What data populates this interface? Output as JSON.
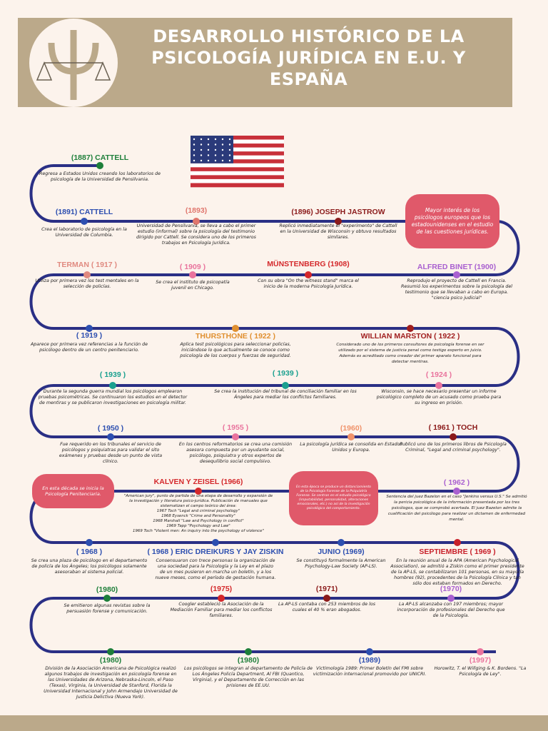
{
  "header": {
    "title": "DESARROLLO HISTÓRICO DE LA PSICOLOGÍA JURÍDICA EN E.U. Y ESPAÑA"
  },
  "events": [
    {
      "label": "(1887) CATTELL",
      "text": "Regresa a Estados Unidos creando los laboratorios de psicología de la Universidad de Pensilvania."
    },
    {
      "label": "(1891) CATTELL",
      "text": "Crea el laboratorio de psicología en la Universidad de Columbia."
    },
    {
      "label": "(1893)",
      "text": "Universidad de Pensilvania, se lleva a cabo el primer estudio (informal) sobre la psicología del testimonio dirigido por Cattell. Se considera uno de los primeros trabajos en Psicología Jurídica."
    },
    {
      "label": "(1896) JOSEPH JASTROW",
      "text": "Replicó inmediatamente el \"experimento\" de Cattell en la Universidad de Wisconsin y obtuvo resultados similares."
    },
    {
      "label": "TERMAN ( 1917 )",
      "text": "Utiliza por primera vez los test mentales en la selección de policías."
    },
    {
      "label": "( 1909 )",
      "text": "Se crea el instituto de psicopatía juvenil en Chicago."
    },
    {
      "label": "MÜNSTENBERG (1908)",
      "text": "Con su obra \"On the witness stand\" marca el inicio de la moderna Psicología Jurídica."
    },
    {
      "label": "ALFRED BINET (1900)",
      "text": "Reprodujo el proyecto de Cattell en Francia. Resumió los experimentos sobre la psicología del testimonio que se llevaban a cabo en Europa. \"ciencia psico judicial\""
    },
    {
      "label": "( 1919 )",
      "text": "Aparece por primera vez referencias a la función de psicólogo dentro de un centro penitenciario."
    },
    {
      "label": "THURSTHONE ( 1922 )",
      "text": "Aplica test psicológicos para seleccionar policías, iniciándose lo que actualmente se conoce como psicología de los cuerpos y fuerzas de seguridad."
    },
    {
      "label": "WILLIAN MARSTON ( 1922 )",
      "text": "Considerado uno de los primeros consultores de psicología forense en ser utilizado por el sistema de justicia penal como testigo experto en juicio. Además es acreditado como creador del primer aparato funcional para detectar mentiras."
    },
    {
      "label": "( 1939 )",
      "text": "Durante la segunda guerra mundial los psicólogos emplearon pruebas psicométricas. Se continuaron los estudios en el detector de mentiras y se publicaron investigaciones en psicología militar."
    },
    {
      "label": "( 1939 )",
      "text": "Se crea la institución del tribunal de conciliación familiar en los Ángeles para mediar los conflictos familiares."
    },
    {
      "label": "( 1924 )",
      "text": "Wisconsin, se hace necesario presentar un informe psicológico completo de un acusado como prueba para su ingreso en prisión."
    },
    {
      "label": "( 1950 )",
      "text": "Fue requerido en los tribunales el servicio de psicólogos y psiquiatras para validar el sito exámenes y pruebas desde un punto de vista clínico."
    },
    {
      "label": "( 1955 )",
      "text": "En los centros reformatorios se crea una comisión asesora compuesta por un ayudante social, psicólogo, psiquiatra y otros expertos de desequilibrio social compulsivo."
    },
    {
      "label": "(1960)",
      "text": "La psicología jurídica se consolida en Estados Unidos y Europa."
    },
    {
      "label": "( 1961 ) TOCH",
      "text": "Publicó uno de los primeros libros de Psicología Criminal, \"Legal and criminal psychology\"."
    },
    {
      "label": "KALVEN Y ZEISEL (1966)",
      "text": "\"American jury\", punto de partida de una etapa de desarrollo y expansión de la investigación y literatura psico-jurídica. Publicación de manuales que sistematizan el campo teórico del área:",
      "works": [
        "1967 Toch \"Legal and criminal psychology\"",
        "1968 Eysenck \"Crime and Personality\"",
        "1968 Marshall \"Law and Psychology in conflict\"",
        "1969 Tapp \"Psychology and Law\"",
        "1969 Toch \"Violent men: An inquiry into the psychology of violence\""
      ]
    },
    {
      "label": "( 1962 )",
      "text": "Sentencia del juez Bazelon en el caso \"Jenkins versus U.S.\" Se admitió la pericia psicológica de la información presentada por los tres psicólogos, que se comprobó acertada. El juez Bazelon admite la cualificación del psicólogo para realizar un dictamen de enfermedad mental."
    },
    {
      "label": "( 1968 )",
      "text": "Se crea una plaza de psicólogo en el departamento de policía de los Ángeles; los psicólogos solamente asesoraban al sistema policial."
    },
    {
      "label": "( 1968 ) ERIC DREIKURS Y JAY ZISKIN",
      "text": "Consensuaron con trece personas la organización de una sociedad para la Psicología y la Ley en el plazo de un mes pusieron en marcha un boletín, y a los nueve meses, como el período de gestación humana."
    },
    {
      "label": "JUNIO (1969)",
      "text": "Se constituyó formalmente la American Psychology-Law Society (AP-LS)."
    },
    {
      "label": "SEPTIEMBRE ( 1969 )",
      "text": "En la reunión anual de la APA (American Psychological Association), se admitió a Ziskin como el primer presidente de la AP-LS, se contabilizaron 101 personas, en su mayoría hombres (92), procedentes de la Psicología Clínica y tan sólo dos estaban formados en Derecho."
    },
    {
      "label": "(1980)",
      "text": "Se emitieron algunas revistas sobre la persuasión forense y comunicación."
    },
    {
      "label": "(1975)",
      "text": "Coogler estableció la Asociación de la Mediación Familiar para mediar los conflictos familiares."
    },
    {
      "label": "(1971)",
      "text": "La AP-LS contaba con 253 miembros de los cuales el 40 % eran abogados."
    },
    {
      "label": "(1970)",
      "text": "La AP-LS alcanzaba con 197 miembros; mayor incorporación de profesionales del Derecho que de la Psicología."
    },
    {
      "label": "(1980)",
      "text": "División de la Asociación Americana de Psicológica realizó algunos trabajos de investigación en psicología forense en las Universidades de Arizona, Nebraska-Lincoln, el Paso (Texas), Virginia, la Universidad de Stanford, Florida la Universidad Internacional y John Armendajo Universidad de Justicia Delictiva (Nueva York)."
    },
    {
      "label": "(1980)",
      "text": "Los psicólogos se integran al departamento de Policía de Los Ángeles Policía Department, Al FBI (Quantico, Virginia), y el Departamento de Corrección en las prisiones de EE.UU."
    },
    {
      "label": "(1989)",
      "text": "Victimología 1989: Primer Boletín del FMI sobre victimización internacional promovido por UNICRI."
    },
    {
      "label": "(1997)",
      "text": "Horowitz, T. el Willging & K. Bordens. \"La Psicología de Ley\"."
    }
  ],
  "notes": [
    "Mayor interés de los psicólogos europeos que los estadounidenses en el estudio de las cuestiones jurídicas.",
    "En esta década se inicia la Psicología Penitenciaria.",
    "En esta época se produce un distanciamiento de la Psicología Forense de la Psiquiatría Forense. Se centran en el estudio psicológico (imputabilidad, personalidad, alteraciones emocionales, etc.) no así de la investigación psicológica del comportamiento."
  ]
}
